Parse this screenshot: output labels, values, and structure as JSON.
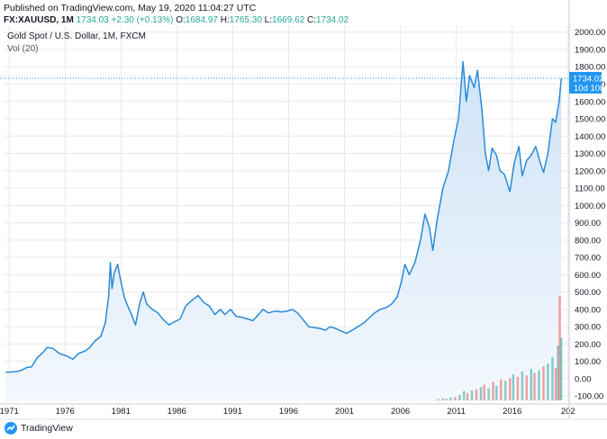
{
  "header": {
    "published": "Published on TradingView.com, May 19, 2020 11:04:27 UTC",
    "symbol": "FX:XAUUSD, 1M",
    "last": "1734.03",
    "change": "+2.30 (+0.13%)",
    "open_label": "O:",
    "open": "1684.97",
    "high_label": "H:",
    "high": "1765.30",
    "low_label": "L:",
    "low": "1669.62",
    "close_label": "C:",
    "close": "1734.02"
  },
  "legend": {
    "title": "Gold Spot / U.S. Dollar, 1M, FXCM",
    "volume": "Vol (20)"
  },
  "price_tag": {
    "value": "1734.02",
    "countdown": "10d 10h"
  },
  "brand": "TradingView",
  "colors": {
    "line": "#2a8ad8",
    "area_top": "#cfe3f7",
    "area_bottom": "#f3f8fd",
    "tag_bg": "#2196f3",
    "vol_up": "#26a69a",
    "vol_down": "#ef5350",
    "grid": "#e6e9ee"
  },
  "chart_data": {
    "type": "area",
    "x_ticks": [
      "1971",
      "1976",
      "1981",
      "1986",
      "1991",
      "1996",
      "2001",
      "2006",
      "2011",
      "2016",
      "202"
    ],
    "y_ticks": [
      "2000.00",
      "1900.00",
      "1800.00",
      "1700.00",
      "1600.00",
      "1500.00",
      "1400.00",
      "1300.00",
      "1200.00",
      "1100.00",
      "1000.00",
      "900.00",
      "800.00",
      "700.00",
      "600.00",
      "500.00",
      "400.00",
      "300.00",
      "200.00",
      "100.00",
      "0.00",
      "-100.00"
    ],
    "ylim": [
      -130,
      2040
    ],
    "xlim": [
      1970.5,
      2021.1
    ],
    "grid": true,
    "series": [
      {
        "values": [
          [
            1970.7,
            37
          ],
          [
            1971.5,
            40
          ],
          [
            1972.0,
            46
          ],
          [
            1972.6,
            65
          ],
          [
            1973.0,
            68
          ],
          [
            1973.5,
            120
          ],
          [
            1974.0,
            150
          ],
          [
            1974.4,
            180
          ],
          [
            1974.9,
            175
          ],
          [
            1975.5,
            145
          ],
          [
            1976.2,
            130
          ],
          [
            1976.7,
            112
          ],
          [
            1977.2,
            145
          ],
          [
            1977.8,
            160
          ],
          [
            1978.2,
            180
          ],
          [
            1978.7,
            220
          ],
          [
            1979.2,
            245
          ],
          [
            1979.6,
            320
          ],
          [
            1979.9,
            480
          ],
          [
            1980.05,
            670
          ],
          [
            1980.2,
            520
          ],
          [
            1980.4,
            610
          ],
          [
            1980.7,
            660
          ],
          [
            1980.9,
            590
          ],
          [
            1981.3,
            470
          ],
          [
            1981.6,
            420
          ],
          [
            1982.0,
            360
          ],
          [
            1982.3,
            310
          ],
          [
            1982.7,
            440
          ],
          [
            1983.0,
            500
          ],
          [
            1983.3,
            430
          ],
          [
            1983.8,
            400
          ],
          [
            1984.3,
            380
          ],
          [
            1984.8,
            340
          ],
          [
            1985.3,
            310
          ],
          [
            1985.7,
            325
          ],
          [
            1986.3,
            345
          ],
          [
            1986.8,
            420
          ],
          [
            1987.3,
            450
          ],
          [
            1987.9,
            480
          ],
          [
            1988.4,
            440
          ],
          [
            1988.9,
            420
          ],
          [
            1989.4,
            370
          ],
          [
            1989.9,
            400
          ],
          [
            1990.3,
            370
          ],
          [
            1990.8,
            400
          ],
          [
            1991.3,
            360
          ],
          [
            1991.8,
            355
          ],
          [
            1992.3,
            345
          ],
          [
            1992.8,
            335
          ],
          [
            1993.3,
            370
          ],
          [
            1993.7,
            400
          ],
          [
            1994.2,
            380
          ],
          [
            1994.8,
            390
          ],
          [
            1995.4,
            385
          ],
          [
            1995.9,
            390
          ],
          [
            1996.3,
            400
          ],
          [
            1996.8,
            380
          ],
          [
            1997.3,
            340
          ],
          [
            1997.8,
            300
          ],
          [
            1998.3,
            295
          ],
          [
            1998.8,
            290
          ],
          [
            1999.3,
            280
          ],
          [
            1999.7,
            300
          ],
          [
            2000.2,
            290
          ],
          [
            2000.7,
            275
          ],
          [
            2001.2,
            262
          ],
          [
            2001.7,
            280
          ],
          [
            2002.2,
            300
          ],
          [
            2002.7,
            320
          ],
          [
            2003.2,
            350
          ],
          [
            2003.7,
            380
          ],
          [
            2004.2,
            400
          ],
          [
            2004.7,
            410
          ],
          [
            2005.2,
            430
          ],
          [
            2005.7,
            470
          ],
          [
            2006.1,
            560
          ],
          [
            2006.4,
            660
          ],
          [
            2006.8,
            600
          ],
          [
            2007.3,
            670
          ],
          [
            2007.8,
            800
          ],
          [
            2008.2,
            950
          ],
          [
            2008.6,
            870
          ],
          [
            2008.9,
            740
          ],
          [
            2009.3,
            920
          ],
          [
            2009.8,
            1100
          ],
          [
            2010.3,
            1200
          ],
          [
            2010.8,
            1380
          ],
          [
            2011.2,
            1500
          ],
          [
            2011.6,
            1830
          ],
          [
            2011.9,
            1600
          ],
          [
            2012.2,
            1750
          ],
          [
            2012.6,
            1680
          ],
          [
            2012.9,
            1780
          ],
          [
            2013.3,
            1550
          ],
          [
            2013.6,
            1300
          ],
          [
            2013.9,
            1200
          ],
          [
            2014.2,
            1330
          ],
          [
            2014.6,
            1290
          ],
          [
            2014.9,
            1200
          ],
          [
            2015.3,
            1180
          ],
          [
            2015.8,
            1080
          ],
          [
            2016.2,
            1250
          ],
          [
            2016.6,
            1340
          ],
          [
            2016.9,
            1170
          ],
          [
            2017.3,
            1260
          ],
          [
            2017.7,
            1290
          ],
          [
            2018.1,
            1340
          ],
          [
            2018.5,
            1250
          ],
          [
            2018.8,
            1190
          ],
          [
            2019.2,
            1300
          ],
          [
            2019.6,
            1500
          ],
          [
            2019.9,
            1480
          ],
          [
            2020.2,
            1600
          ],
          [
            2020.4,
            1734
          ]
        ]
      }
    ],
    "volume": [
      [
        2009.4,
        5,
        "up"
      ],
      [
        2009.8,
        8,
        "down"
      ],
      [
        2010.1,
        6,
        "up"
      ],
      [
        2010.5,
        10,
        "up"
      ],
      [
        2010.9,
        12,
        "down"
      ],
      [
        2011.3,
        20,
        "up"
      ],
      [
        2011.7,
        35,
        "up"
      ],
      [
        2012.0,
        28,
        "down"
      ],
      [
        2012.4,
        38,
        "up"
      ],
      [
        2012.8,
        42,
        "down"
      ],
      [
        2013.2,
        50,
        "up"
      ],
      [
        2013.5,
        60,
        "down"
      ],
      [
        2013.9,
        45,
        "up"
      ],
      [
        2014.3,
        70,
        "down"
      ],
      [
        2014.6,
        55,
        "up"
      ],
      [
        2015.0,
        80,
        "down"
      ],
      [
        2015.4,
        75,
        "up"
      ],
      [
        2015.8,
        85,
        "down"
      ],
      [
        2016.1,
        100,
        "up"
      ],
      [
        2016.5,
        90,
        "down"
      ],
      [
        2016.9,
        110,
        "up"
      ],
      [
        2017.3,
        95,
        "down"
      ],
      [
        2017.7,
        120,
        "up"
      ],
      [
        2018.0,
        105,
        "down"
      ],
      [
        2018.4,
        115,
        "up"
      ],
      [
        2018.8,
        130,
        "down"
      ],
      [
        2019.2,
        140,
        "up"
      ],
      [
        2019.6,
        165,
        "up"
      ],
      [
        2019.9,
        125,
        "down"
      ],
      [
        2020.1,
        210,
        "up"
      ],
      [
        2020.25,
        400,
        "down"
      ],
      [
        2020.4,
        240,
        "up"
      ]
    ]
  }
}
